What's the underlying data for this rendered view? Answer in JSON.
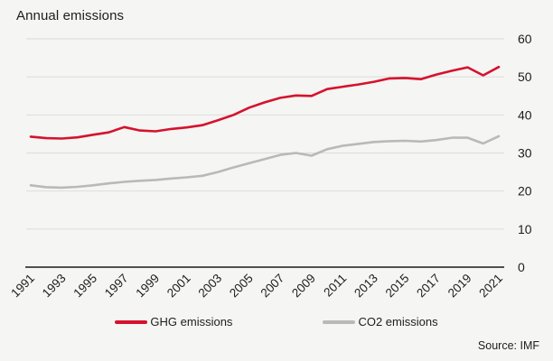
{
  "title": "Annual emissions",
  "source_note": "Source: IMF",
  "colors": {
    "ghg_red": "#d5122d",
    "co2_gray": "#b9b9b9",
    "background": "#f5f5f3",
    "gridline": "#dcdcdb",
    "axis_line": "#1a1a1a",
    "text": "#1d1d1b"
  },
  "legend": [
    {
      "label": "GHG emissions",
      "color": "#d5122d"
    },
    {
      "label": "CO2 emissions",
      "color": "#b9b9b9"
    }
  ],
  "chart_data": {
    "type": "line",
    "title": "Annual emissions",
    "x": [
      1991,
      1992,
      1993,
      1994,
      1995,
      1996,
      1997,
      1998,
      1999,
      2000,
      2001,
      2002,
      2003,
      2004,
      2005,
      2006,
      2007,
      2008,
      2009,
      2010,
      2011,
      2012,
      2013,
      2014,
      2015,
      2016,
      2017,
      2018,
      2019,
      2020,
      2021
    ],
    "series": [
      {
        "name": "GHG emissions",
        "color": "#d5122d",
        "values": [
          34.3,
          33.9,
          33.8,
          34.1,
          34.8,
          35.4,
          36.8,
          35.9,
          35.7,
          36.3,
          36.7,
          37.3,
          38.6,
          40.0,
          41.9,
          43.3,
          44.5,
          45.1,
          45.0,
          46.8,
          47.4,
          48.0,
          48.7,
          49.6,
          49.7,
          49.4,
          50.6,
          51.6,
          52.5,
          50.4,
          52.6
        ]
      },
      {
        "name": "CO2 emissions",
        "color": "#b9b9b9",
        "values": [
          21.5,
          21.0,
          20.9,
          21.1,
          21.5,
          22.0,
          22.4,
          22.7,
          22.9,
          23.3,
          23.6,
          24.0,
          25.0,
          26.2,
          27.3,
          28.4,
          29.5,
          30.0,
          29.3,
          31.0,
          31.9,
          32.4,
          32.9,
          33.1,
          33.2,
          33.0,
          33.4,
          34.0,
          34.0,
          32.5,
          34.4
        ]
      }
    ],
    "xlabel": "",
    "ylabel": "",
    "ylim": [
      0,
      60
    ],
    "yticks": [
      0,
      10,
      20,
      30,
      40,
      50,
      60
    ],
    "xtick_labels": [
      "1991",
      "1993",
      "1995",
      "1997",
      "1999",
      "2001",
      "2003",
      "2005",
      "2007",
      "2009",
      "2011",
      "2013",
      "2015",
      "2017",
      "2019",
      "2021"
    ],
    "grid": "horizontal",
    "y_axis_side": "right",
    "legend_position": "bottom",
    "source": "Source: IMF"
  }
}
